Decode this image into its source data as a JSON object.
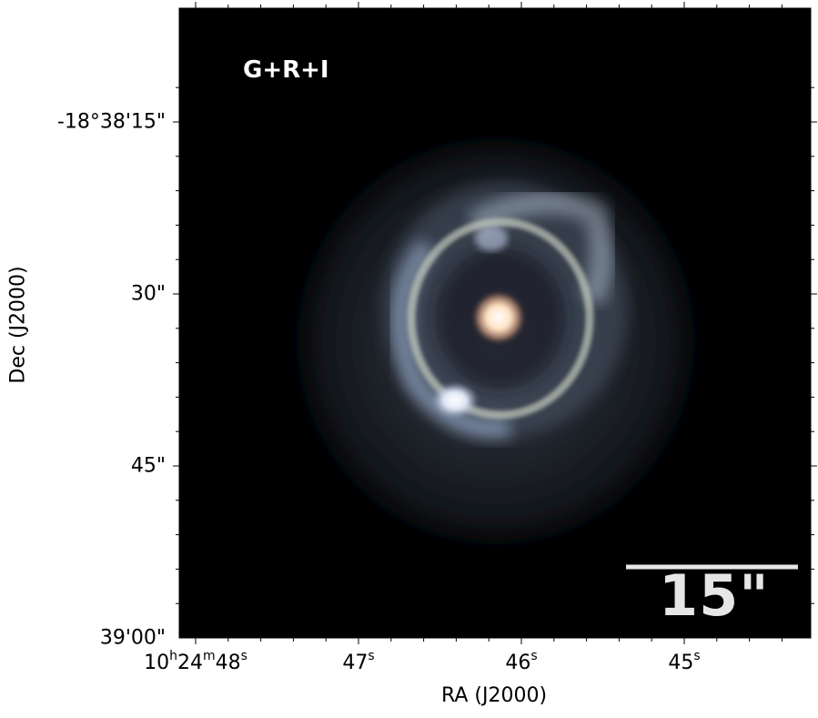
{
  "image": {
    "filter_label": "G+R+I",
    "scale_bar_label": "15\"",
    "colors": {
      "background": "#000000",
      "ring": "#c9d0c8",
      "halo": "#8a9bb0",
      "core": "#ffd8b0"
    }
  },
  "axes": {
    "xlabel": "RA (J2000)",
    "ylabel": "Dec (J2000)",
    "ra_ticks": [
      {
        "h": "10",
        "hs": "h",
        "m": "24",
        "ms": "m",
        "s": "48",
        "ss": "s"
      },
      {
        "s": "47",
        "ss": "s"
      },
      {
        "s": "46",
        "ss": "s"
      },
      {
        "s": "45",
        "ss": "s"
      }
    ],
    "dec_ticks": [
      "-18°38'15\"",
      "30\"",
      "45\"",
      "39'00\""
    ]
  }
}
